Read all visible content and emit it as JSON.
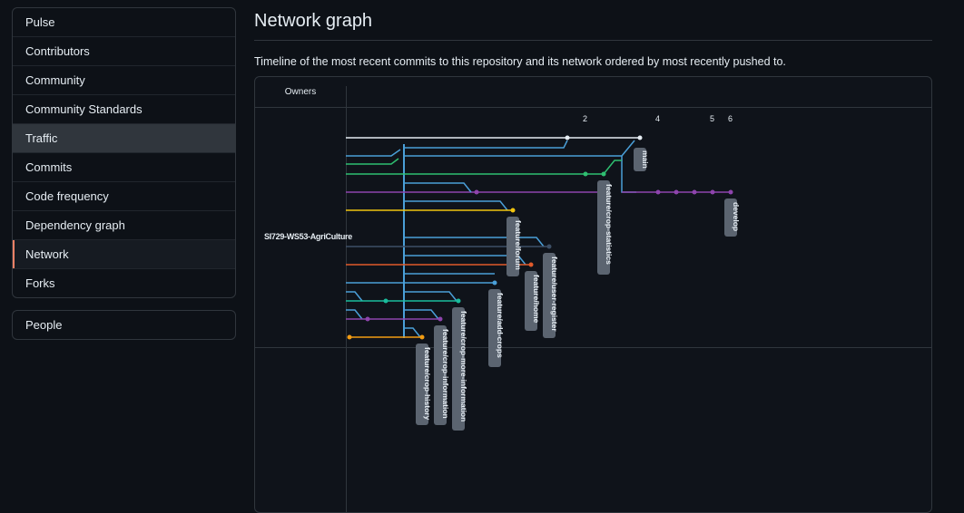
{
  "sidebar": {
    "items": [
      {
        "label": "Pulse"
      },
      {
        "label": "Contributors"
      },
      {
        "label": "Community"
      },
      {
        "label": "Community Standards"
      },
      {
        "label": "Traffic"
      },
      {
        "label": "Commits"
      },
      {
        "label": "Code frequency"
      },
      {
        "label": "Dependency graph"
      },
      {
        "label": "Network"
      },
      {
        "label": "Forks"
      }
    ],
    "people_label": "People"
  },
  "page": {
    "title": "Network graph",
    "description": "Timeline of the most recent commits to this repository and its network ordered by most recently pushed to."
  },
  "graph": {
    "owners_header": "Owners",
    "owner": "SI729-WS53-AgriCulture",
    "ticks": [
      "2",
      "4",
      "5",
      "6"
    ],
    "branches": [
      "main",
      "develop",
      "feature/crop-statistics",
      "feature/forum",
      "feature/home",
      "feature/user-register",
      "feature/add-crops",
      "feature/crop-more-information",
      "feature/crop-information",
      "feature/crop-history"
    ],
    "colors": {
      "white": "#e6edf3",
      "blue": "#4a9fd8",
      "green": "#2fbf71",
      "purple": "#8e44ad",
      "yellow": "#f1c40f",
      "slate": "#3d4f66",
      "red": "#e05a2b",
      "orange": "#f39c12",
      "teal": "#1abc9c"
    }
  }
}
